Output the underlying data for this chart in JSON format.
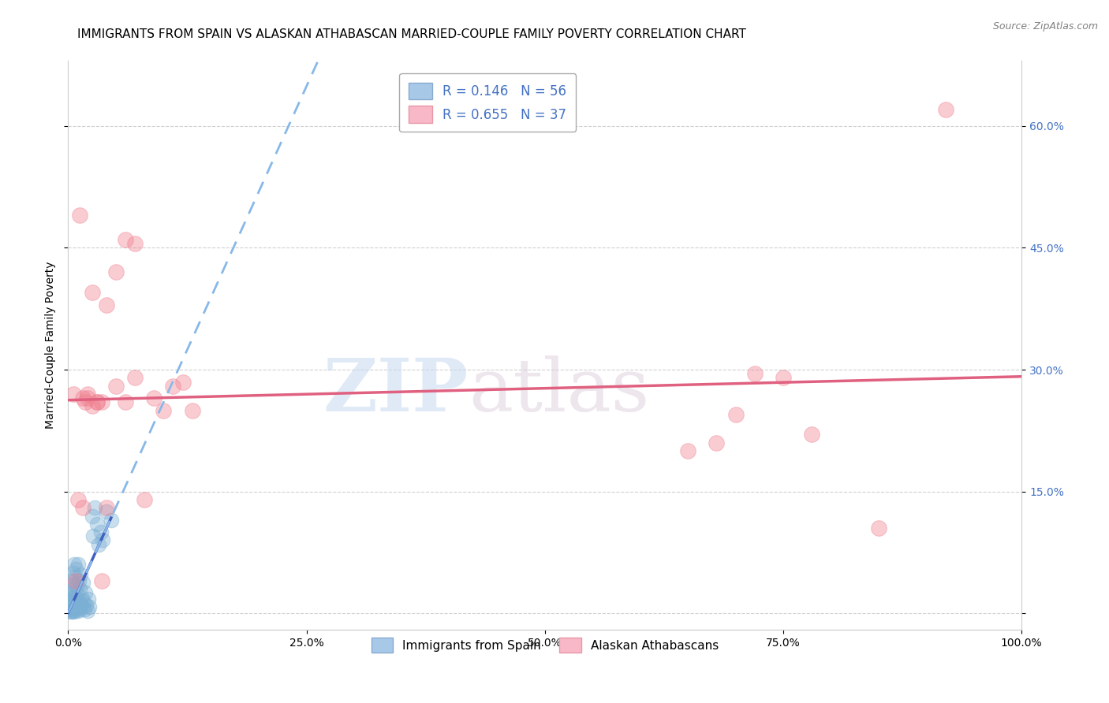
{
  "title": "IMMIGRANTS FROM SPAIN VS ALASKAN ATHABASCAN MARRIED-COUPLE FAMILY POVERTY CORRELATION CHART",
  "source": "Source: ZipAtlas.com",
  "ylabel": "Married-Couple Family Poverty",
  "watermark_zip": "ZIP",
  "watermark_atlas": "atlas",
  "xlim": [
    0.0,
    1.0
  ],
  "ylim": [
    -0.02,
    0.68
  ],
  "yticks": [
    0.0,
    0.15,
    0.3,
    0.45,
    0.6
  ],
  "xticks": [
    0.0,
    0.25,
    0.5,
    0.75,
    1.0
  ],
  "xtick_labels": [
    "0.0%",
    "25.0%",
    "50.0%",
    "75.0%",
    "100.0%"
  ],
  "ytick_labels_right": [
    "",
    "15.0%",
    "30.0%",
    "45.0%",
    "60.0%"
  ],
  "series1_name": "Immigrants from Spain",
  "series2_name": "Alaskan Athabascans",
  "series1_color": "#7bafd4",
  "series2_color": "#f08090",
  "series1_R": 0.146,
  "series1_N": 56,
  "series2_R": 0.655,
  "series2_N": 37,
  "blue_line_color": "#4060c0",
  "pink_line_color": "#e06080",
  "blue_dashed_color": "#88b8e8",
  "title_fontsize": 11,
  "axis_label_fontsize": 10,
  "tick_fontsize": 10,
  "series1_x": [
    0.001,
    0.002,
    0.002,
    0.003,
    0.003,
    0.003,
    0.003,
    0.004,
    0.004,
    0.004,
    0.004,
    0.005,
    0.005,
    0.005,
    0.005,
    0.005,
    0.006,
    0.006,
    0.006,
    0.006,
    0.007,
    0.007,
    0.007,
    0.008,
    0.008,
    0.008,
    0.009,
    0.009,
    0.01,
    0.01,
    0.01,
    0.011,
    0.011,
    0.012,
    0.012,
    0.013,
    0.013,
    0.014,
    0.015,
    0.015,
    0.016,
    0.017,
    0.018,
    0.019,
    0.02,
    0.021,
    0.022,
    0.025,
    0.026,
    0.028,
    0.03,
    0.032,
    0.034,
    0.036,
    0.04,
    0.045
  ],
  "series1_y": [
    0.003,
    0.005,
    0.008,
    0.002,
    0.01,
    0.015,
    0.02,
    0.003,
    0.012,
    0.025,
    0.04,
    0.002,
    0.008,
    0.018,
    0.03,
    0.05,
    0.005,
    0.015,
    0.035,
    0.06,
    0.003,
    0.02,
    0.045,
    0.01,
    0.025,
    0.055,
    0.008,
    0.035,
    0.003,
    0.018,
    0.06,
    0.012,
    0.04,
    0.005,
    0.03,
    0.01,
    0.048,
    0.02,
    0.008,
    0.038,
    0.015,
    0.005,
    0.025,
    0.01,
    0.003,
    0.018,
    0.008,
    0.12,
    0.095,
    0.13,
    0.11,
    0.085,
    0.1,
    0.09,
    0.125,
    0.115
  ],
  "series2_x": [
    0.005,
    0.008,
    0.01,
    0.012,
    0.015,
    0.018,
    0.02,
    0.025,
    0.03,
    0.035,
    0.04,
    0.05,
    0.06,
    0.07,
    0.08,
    0.09,
    0.1,
    0.11,
    0.12,
    0.13,
    0.015,
    0.02,
    0.025,
    0.03,
    0.035,
    0.04,
    0.05,
    0.06,
    0.07,
    0.65,
    0.68,
    0.7,
    0.72,
    0.75,
    0.78,
    0.85,
    0.92
  ],
  "series2_y": [
    0.27,
    0.04,
    0.14,
    0.49,
    0.13,
    0.26,
    0.265,
    0.255,
    0.26,
    0.26,
    0.38,
    0.42,
    0.46,
    0.455,
    0.14,
    0.265,
    0.25,
    0.28,
    0.285,
    0.25,
    0.265,
    0.27,
    0.395,
    0.26,
    0.04,
    0.13,
    0.28,
    0.26,
    0.29,
    0.2,
    0.21,
    0.245,
    0.295,
    0.29,
    0.22,
    0.105,
    0.62
  ]
}
